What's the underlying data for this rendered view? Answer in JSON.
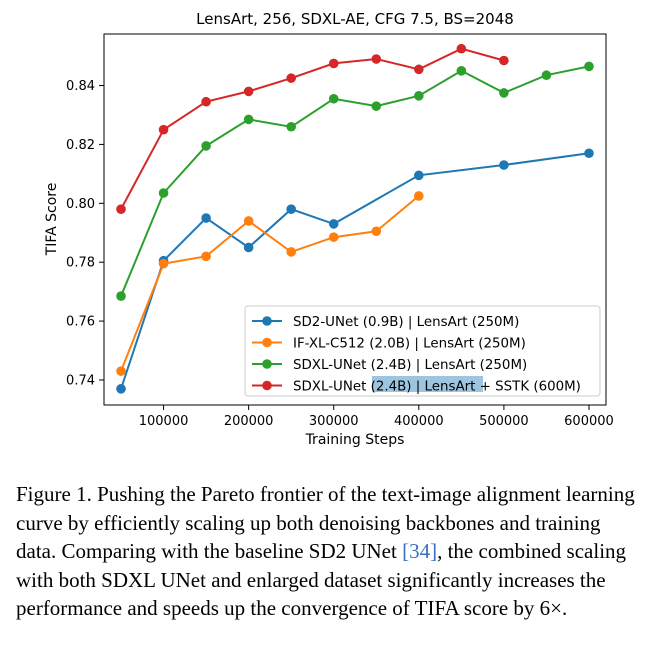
{
  "chart_data": {
    "type": "line",
    "title": "LensArt, 256, SDXL-AE, CFG 7.5, BS=2048",
    "xlabel": "Training Steps",
    "ylabel": "TIFA Score",
    "xlim": [
      30000,
      620000
    ],
    "ylim": [
      0.7315,
      0.8575
    ],
    "xticks": [
      100000,
      200000,
      300000,
      400000,
      500000,
      600000
    ],
    "xtick_labels": [
      "100000",
      "200000",
      "300000",
      "400000",
      "500000",
      "600000"
    ],
    "yticks": [
      0.74,
      0.76,
      0.78,
      0.8,
      0.82,
      0.84
    ],
    "ytick_labels": [
      "0.74",
      "0.76",
      "0.78",
      "0.80",
      "0.82",
      "0.84"
    ],
    "grid": false,
    "legend_position": "bottom-right",
    "series": [
      {
        "name": "SD2-UNet (0.9B) | LensArt (250M)",
        "color": "#1f77b4",
        "x": [
          50000,
          100000,
          150000,
          200000,
          250000,
          300000,
          400000,
          500000,
          600000
        ],
        "y": [
          0.737,
          0.7805,
          0.795,
          0.785,
          0.798,
          0.793,
          0.8095,
          0.813,
          0.817
        ]
      },
      {
        "name": "IF-XL-C512 (2.0B) | LensArt (250M)",
        "color": "#ff7f0e",
        "x": [
          50000,
          100000,
          150000,
          200000,
          250000,
          300000,
          350000,
          400000
        ],
        "y": [
          0.743,
          0.7795,
          0.782,
          0.794,
          0.7835,
          0.7885,
          0.7905,
          0.8025
        ]
      },
      {
        "name": "SDXL-UNet (2.4B) | LensArt (250M)",
        "color": "#2ca02c",
        "x": [
          50000,
          100000,
          150000,
          200000,
          250000,
          300000,
          350000,
          400000,
          450000,
          500000,
          550000,
          600000
        ],
        "y": [
          0.7685,
          0.8035,
          0.8195,
          0.8285,
          0.826,
          0.8355,
          0.833,
          0.8365,
          0.845,
          0.8375,
          0.8435,
          0.8465
        ]
      },
      {
        "name": "SDXL-UNet (2.4B) | LensArt + SSTK (600M)",
        "color": "#d62728",
        "x": [
          50000,
          100000,
          150000,
          200000,
          250000,
          300000,
          350000,
          400000,
          450000,
          500000
        ],
        "y": [
          0.798,
          0.825,
          0.8345,
          0.838,
          0.8425,
          0.8475,
          0.849,
          0.8455,
          0.8525,
          0.8485
        ]
      }
    ]
  },
  "caption": {
    "label": "Figure 1.",
    "text_before_cite": "Pushing the Pareto frontier of the text-image alignment learning curve by efficiently scaling up both denoising backbones and training data. Comparing with the baseline SD2 UNet",
    "cite": "[34]",
    "text_after_cite": ", the combined scaling with both SDXL UNet and enlarged dataset significantly increases the performance and speeds up the convergence of TIFA score by 6×."
  }
}
